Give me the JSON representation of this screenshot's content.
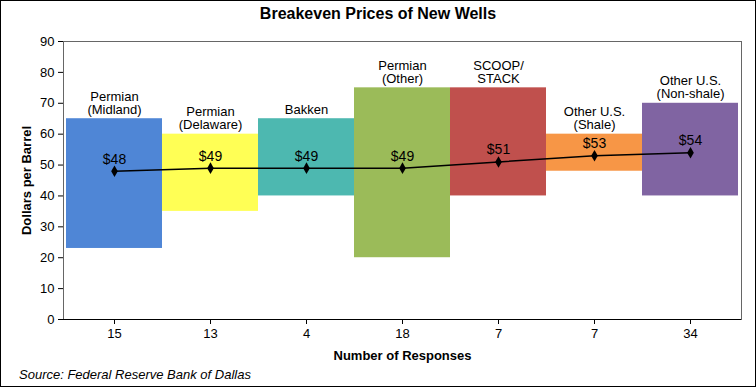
{
  "chart_data": {
    "type": "floating_bar",
    "title": "Breakeven Prices of New Wells",
    "xlabel": "Number of Responses",
    "ylabel": "Dollars per Barrel",
    "source": "Source: Federal Reserve Bank of Dallas",
    "categories": [
      "Permian\n(Midland)",
      "Permian\n(Delaware)",
      "Bakken",
      "Permian\n(Other)",
      "SCOOP/\nSTACK",
      "Other U.S.\n(Shale)",
      "Other U.S.\n(Non-shale)"
    ],
    "responses": [
      15,
      13,
      4,
      18,
      7,
      7,
      34
    ],
    "low": [
      23,
      35,
      40,
      20,
      40,
      48,
      40
    ],
    "high": [
      65,
      60,
      65,
      75,
      75,
      60,
      70
    ],
    "colors": [
      "#4f86d6",
      "#ffff55",
      "#4db8b0",
      "#9bbb59",
      "#c0504d",
      "#f79646",
      "#8064a2"
    ],
    "averages": {
      "type": "line",
      "color": "#000000",
      "marker": "diamond",
      "line_style": "solid",
      "values": [
        48,
        49,
        49,
        49,
        51,
        53,
        54
      ],
      "value_labels": [
        "$48",
        "$49",
        "$49",
        "$49",
        "$51",
        "$53",
        "$54"
      ]
    },
    "data_labels": true,
    "grid": false,
    "ylim": [
      0,
      90
    ],
    "yticks": [
      0,
      10,
      20,
      30,
      40,
      50,
      60,
      70,
      80,
      90
    ]
  }
}
